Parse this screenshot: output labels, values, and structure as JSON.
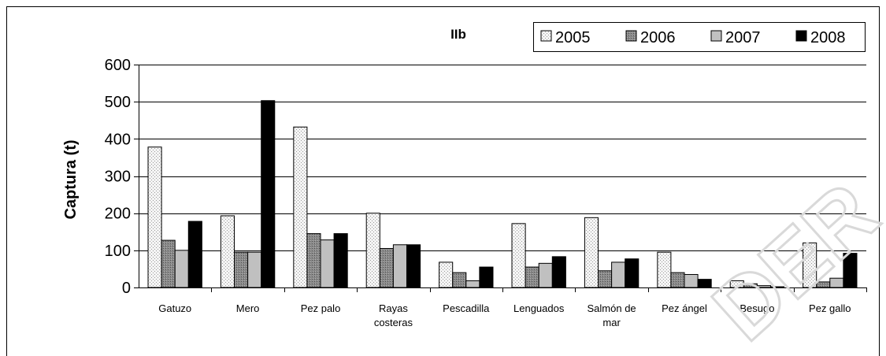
{
  "chart_data": {
    "type": "bar",
    "title": "IIb",
    "ylabel": "Captura (t)",
    "xlabel": "",
    "ylim": [
      0,
      600
    ],
    "yticks": [
      0,
      100,
      200,
      300,
      400,
      500,
      600
    ],
    "grid": true,
    "legend_position": "top-right",
    "categories": [
      [
        "Gatuzo"
      ],
      [
        "Mero"
      ],
      [
        "Pez palo"
      ],
      [
        "Rayas",
        "costeras"
      ],
      [
        "Pescadilla"
      ],
      [
        "Lenguados"
      ],
      [
        "Salmón de",
        "mar"
      ],
      [
        "Pez ángel"
      ],
      [
        "Besugo"
      ],
      [
        "Pez gallo"
      ]
    ],
    "series": [
      {
        "name": "2005",
        "color": "#eeeeee",
        "pattern": "dotted-light",
        "values": [
          378,
          193,
          432,
          200,
          68,
          172,
          188,
          95,
          18,
          120
        ]
      },
      {
        "name": "2006",
        "color": "#808080",
        "pattern": "dotted-dark",
        "values": [
          127,
          95,
          145,
          105,
          40,
          55,
          45,
          40,
          10,
          15
        ]
      },
      {
        "name": "2007",
        "color": "#c0c0c0",
        "pattern": "solid",
        "values": [
          100,
          95,
          128,
          115,
          18,
          65,
          68,
          35,
          5,
          25
        ]
      },
      {
        "name": "2008",
        "color": "#000000",
        "pattern": "solid",
        "values": [
          178,
          503,
          145,
          115,
          55,
          83,
          77,
          22,
          2,
          92
        ]
      }
    ]
  },
  "watermark": "DER"
}
